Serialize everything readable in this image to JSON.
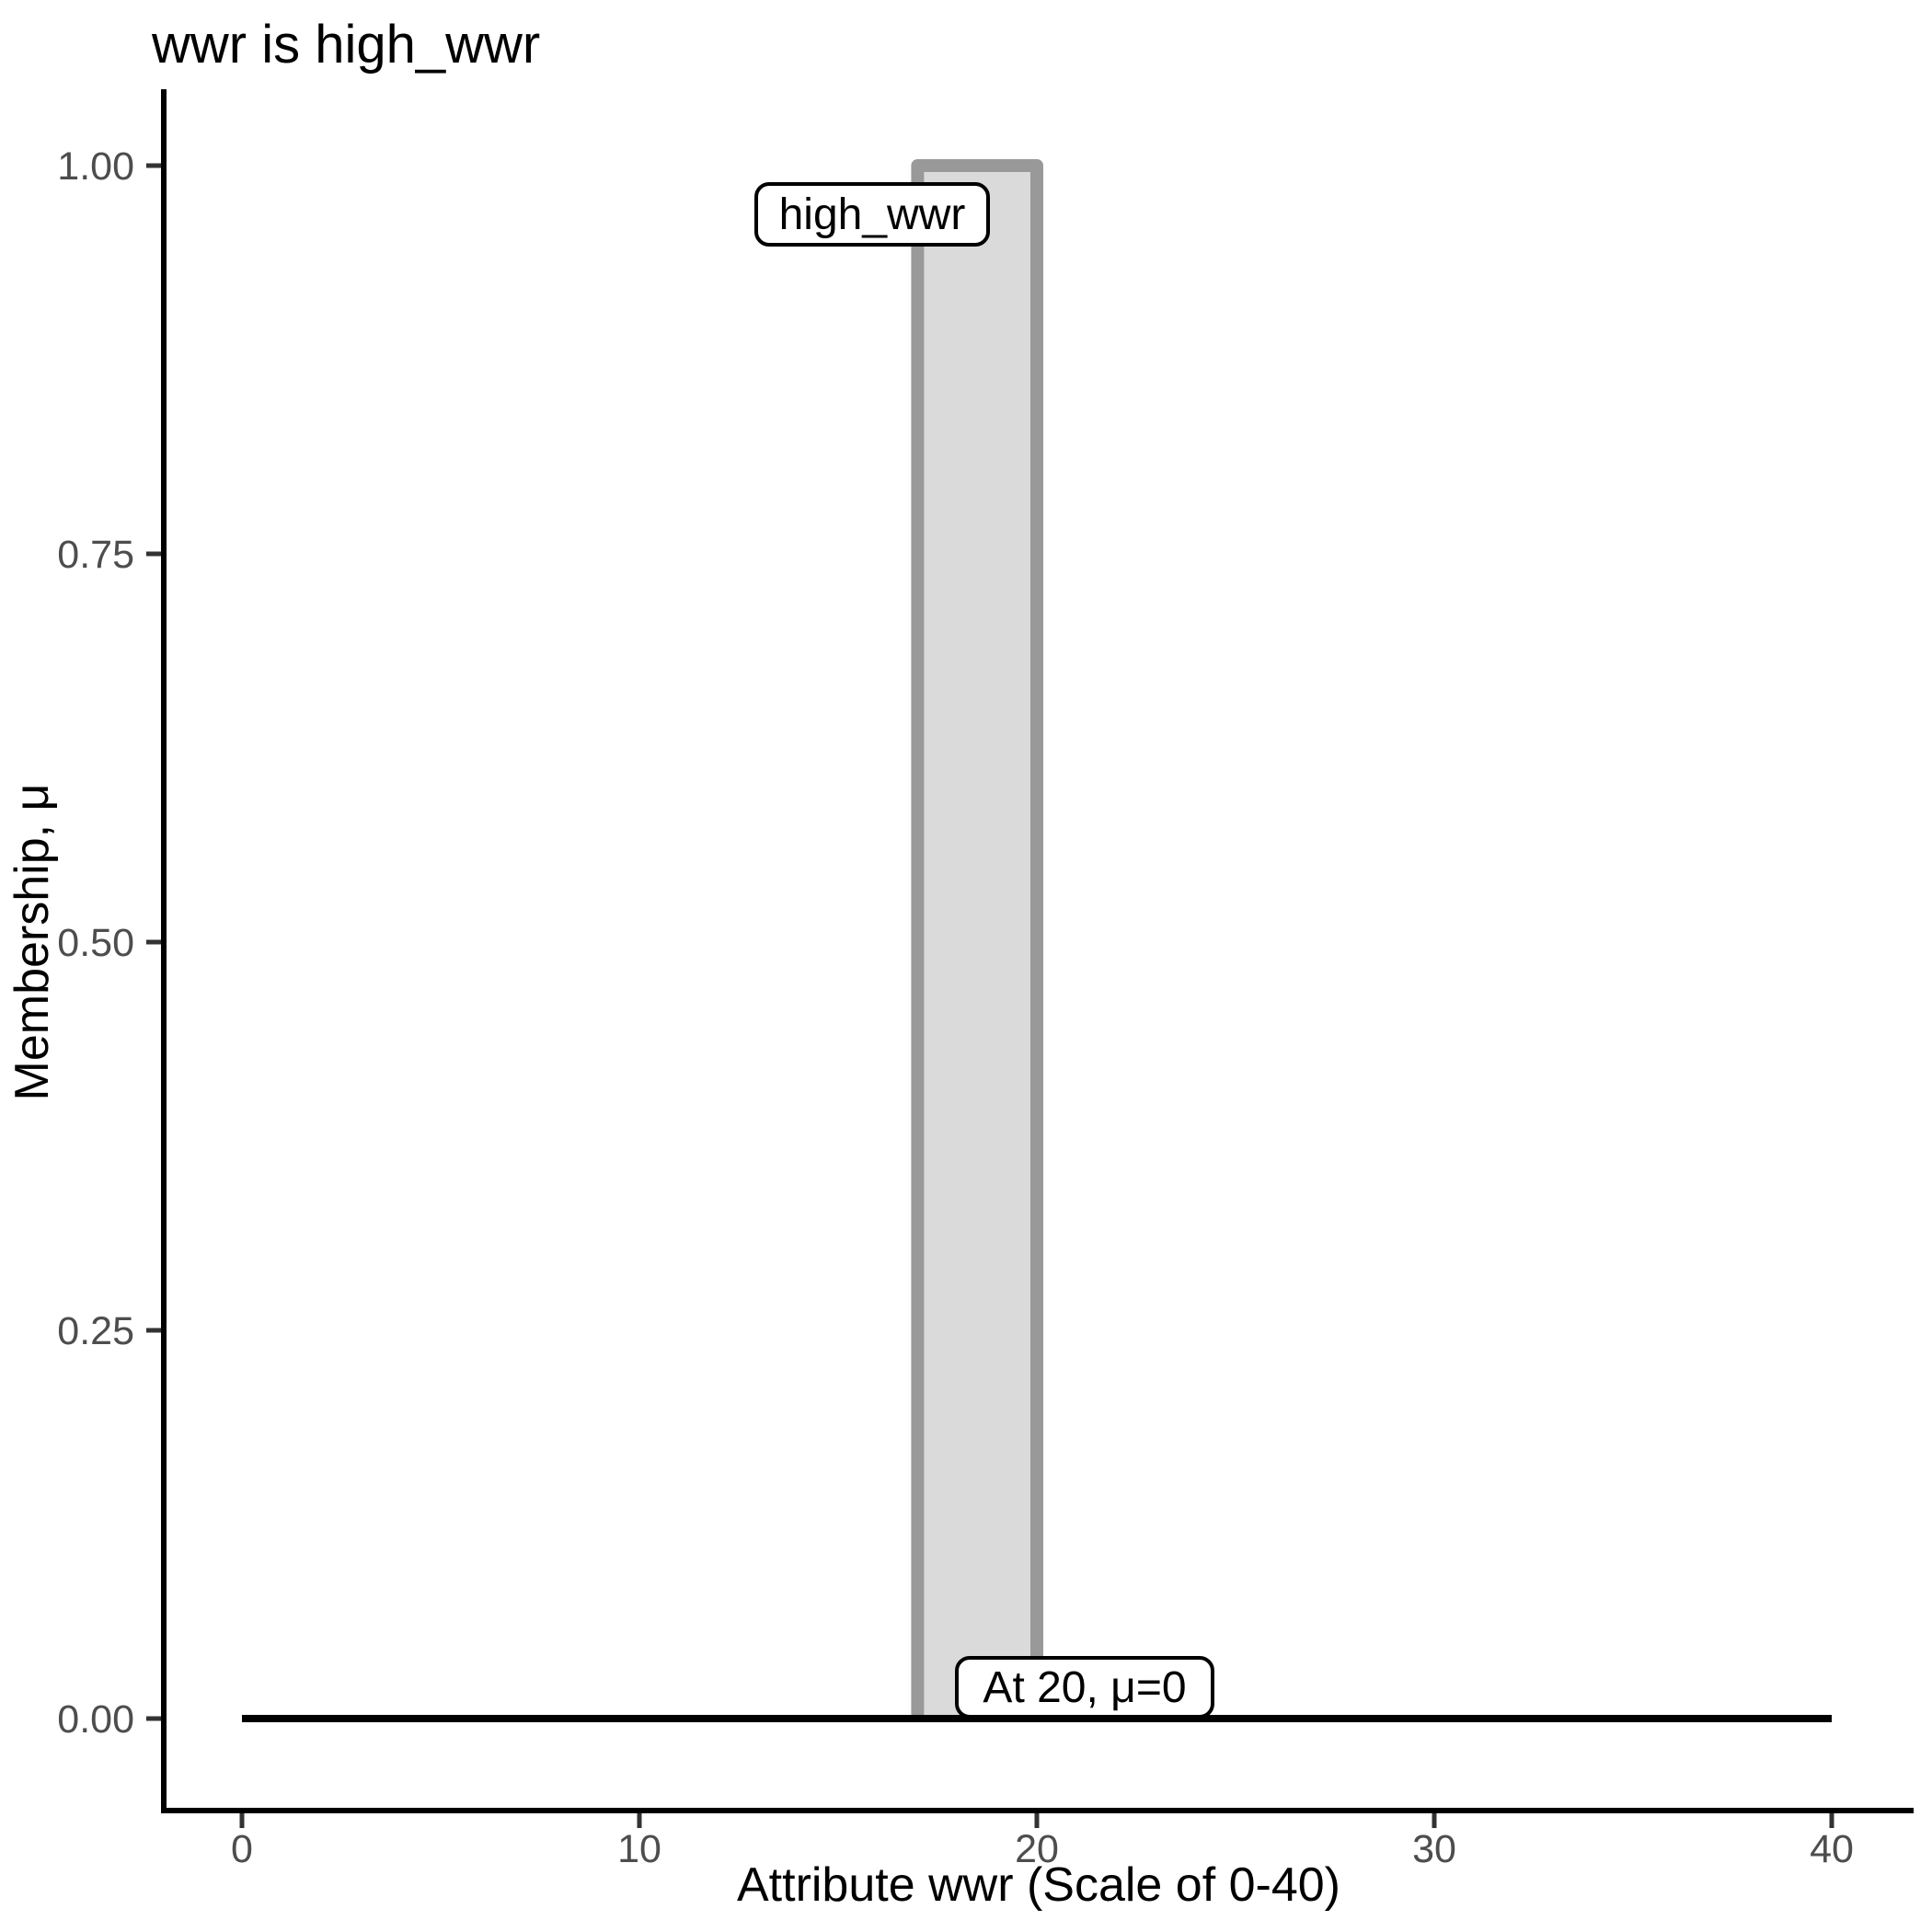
{
  "chart_data": {
    "type": "area",
    "title": "wwr is high_wwr",
    "xlabel": "Attribute wwr (Scale of 0-40)",
    "ylabel": "Membership, μ",
    "xlim": [
      0,
      40
    ],
    "ylim": [
      0,
      1
    ],
    "x_ticks": [
      0,
      10,
      20,
      30,
      40
    ],
    "x_tick_labels": [
      "0",
      "10",
      "20",
      "30",
      "40"
    ],
    "y_ticks": [
      0,
      0.25,
      0.5,
      0.75,
      1
    ],
    "y_tick_labels": [
      "0.00",
      "0.25",
      "0.50",
      "0.75",
      "1.00"
    ],
    "grid": false,
    "legend": "none",
    "membership_function": {
      "name": "high_wwr",
      "points": [
        [
          17,
          0
        ],
        [
          17,
          1
        ],
        [
          20,
          1
        ],
        [
          20,
          0
        ]
      ],
      "fill": "#dadada",
      "stroke": "#999999",
      "stroke_width": 14
    },
    "baseline": {
      "points": [
        [
          0,
          0
        ],
        [
          40,
          0
        ]
      ],
      "color": "#000000",
      "stroke_width": 8
    },
    "annotations": [
      {
        "label": "high_wwr",
        "x": 16,
        "y": 0.97
      },
      {
        "label": "At 20, μ=0",
        "x": 21.2,
        "y": 0.02
      }
    ],
    "colors": {
      "background": "#ffffff",
      "axis_line": "#000000",
      "tick_mark": "#333333",
      "tick_label": "#4d4d4d",
      "title_text": "#000000",
      "annotation_fill": "#ffffff",
      "annotation_border": "#000000"
    }
  }
}
